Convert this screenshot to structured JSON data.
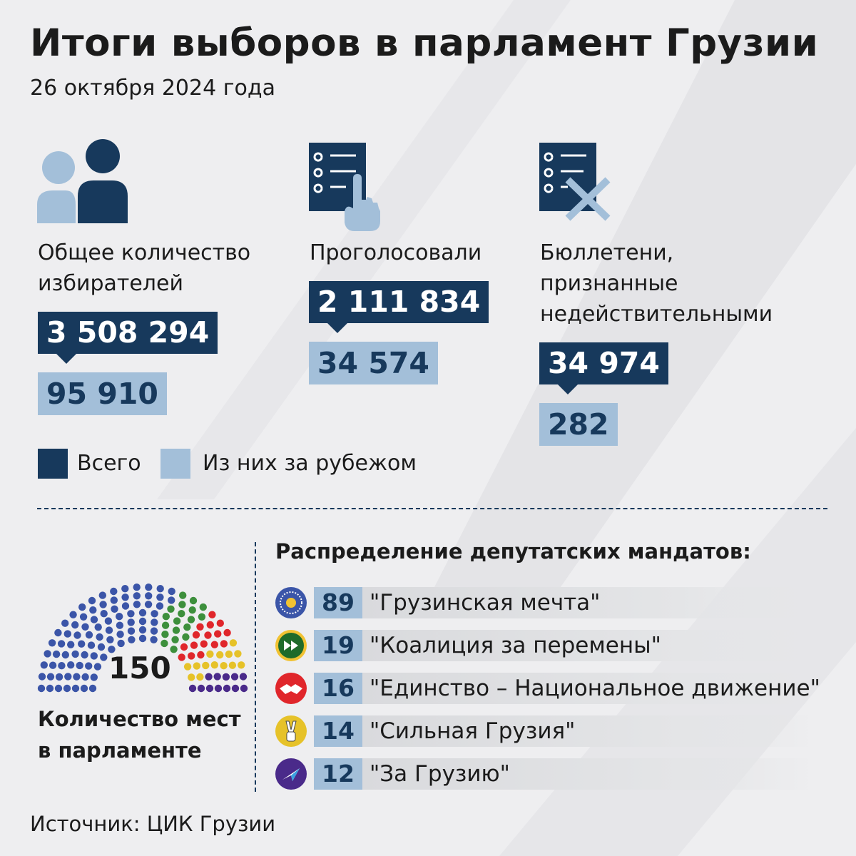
{
  "title": "Итоги выборов в парламент Грузии",
  "subtitle": "26 октября 2024 года",
  "colors": {
    "dark": "#17395c",
    "light": "#a3bfd9"
  },
  "stats": [
    {
      "icon": "voters-icon",
      "label_lines": [
        "Общее количество",
        "избирателей"
      ],
      "total": "3 508 294",
      "abroad": "95 910"
    },
    {
      "icon": "ballot-vote-icon",
      "label_lines": [
        "Проголосовали"
      ],
      "total": "2 111 834",
      "abroad": "34 574"
    },
    {
      "icon": "ballot-invalid-icon",
      "label_lines": [
        "Бюллетени,",
        "признанные",
        "недействительными"
      ],
      "total": "34 974",
      "abroad": "282"
    }
  ],
  "legend": {
    "total": "Всего",
    "abroad": "Из них за рубежом"
  },
  "parliament": {
    "total_seats": "150",
    "label_lines": [
      "Количество мест",
      "в парламенте"
    ]
  },
  "distribution_title": "Распределение депутатских мандатов:",
  "chart_data": {
    "type": "bar",
    "title": "Распределение депутатских мандатов:",
    "categories": [
      "\"Грузинская мечта\"",
      "\"Коалиция за перемены\"",
      "\"Единство – Национальное движение\"",
      "\"Сильная Грузия\"",
      "\"За Грузию\""
    ],
    "values": [
      89,
      19,
      16,
      14,
      12
    ],
    "colors": [
      "#3b55a8",
      "#3d8f3c",
      "#e0262b",
      "#e6c229",
      "#4a2a8a"
    ],
    "total": 150
  },
  "source": "Источник: ЦИК Грузии"
}
